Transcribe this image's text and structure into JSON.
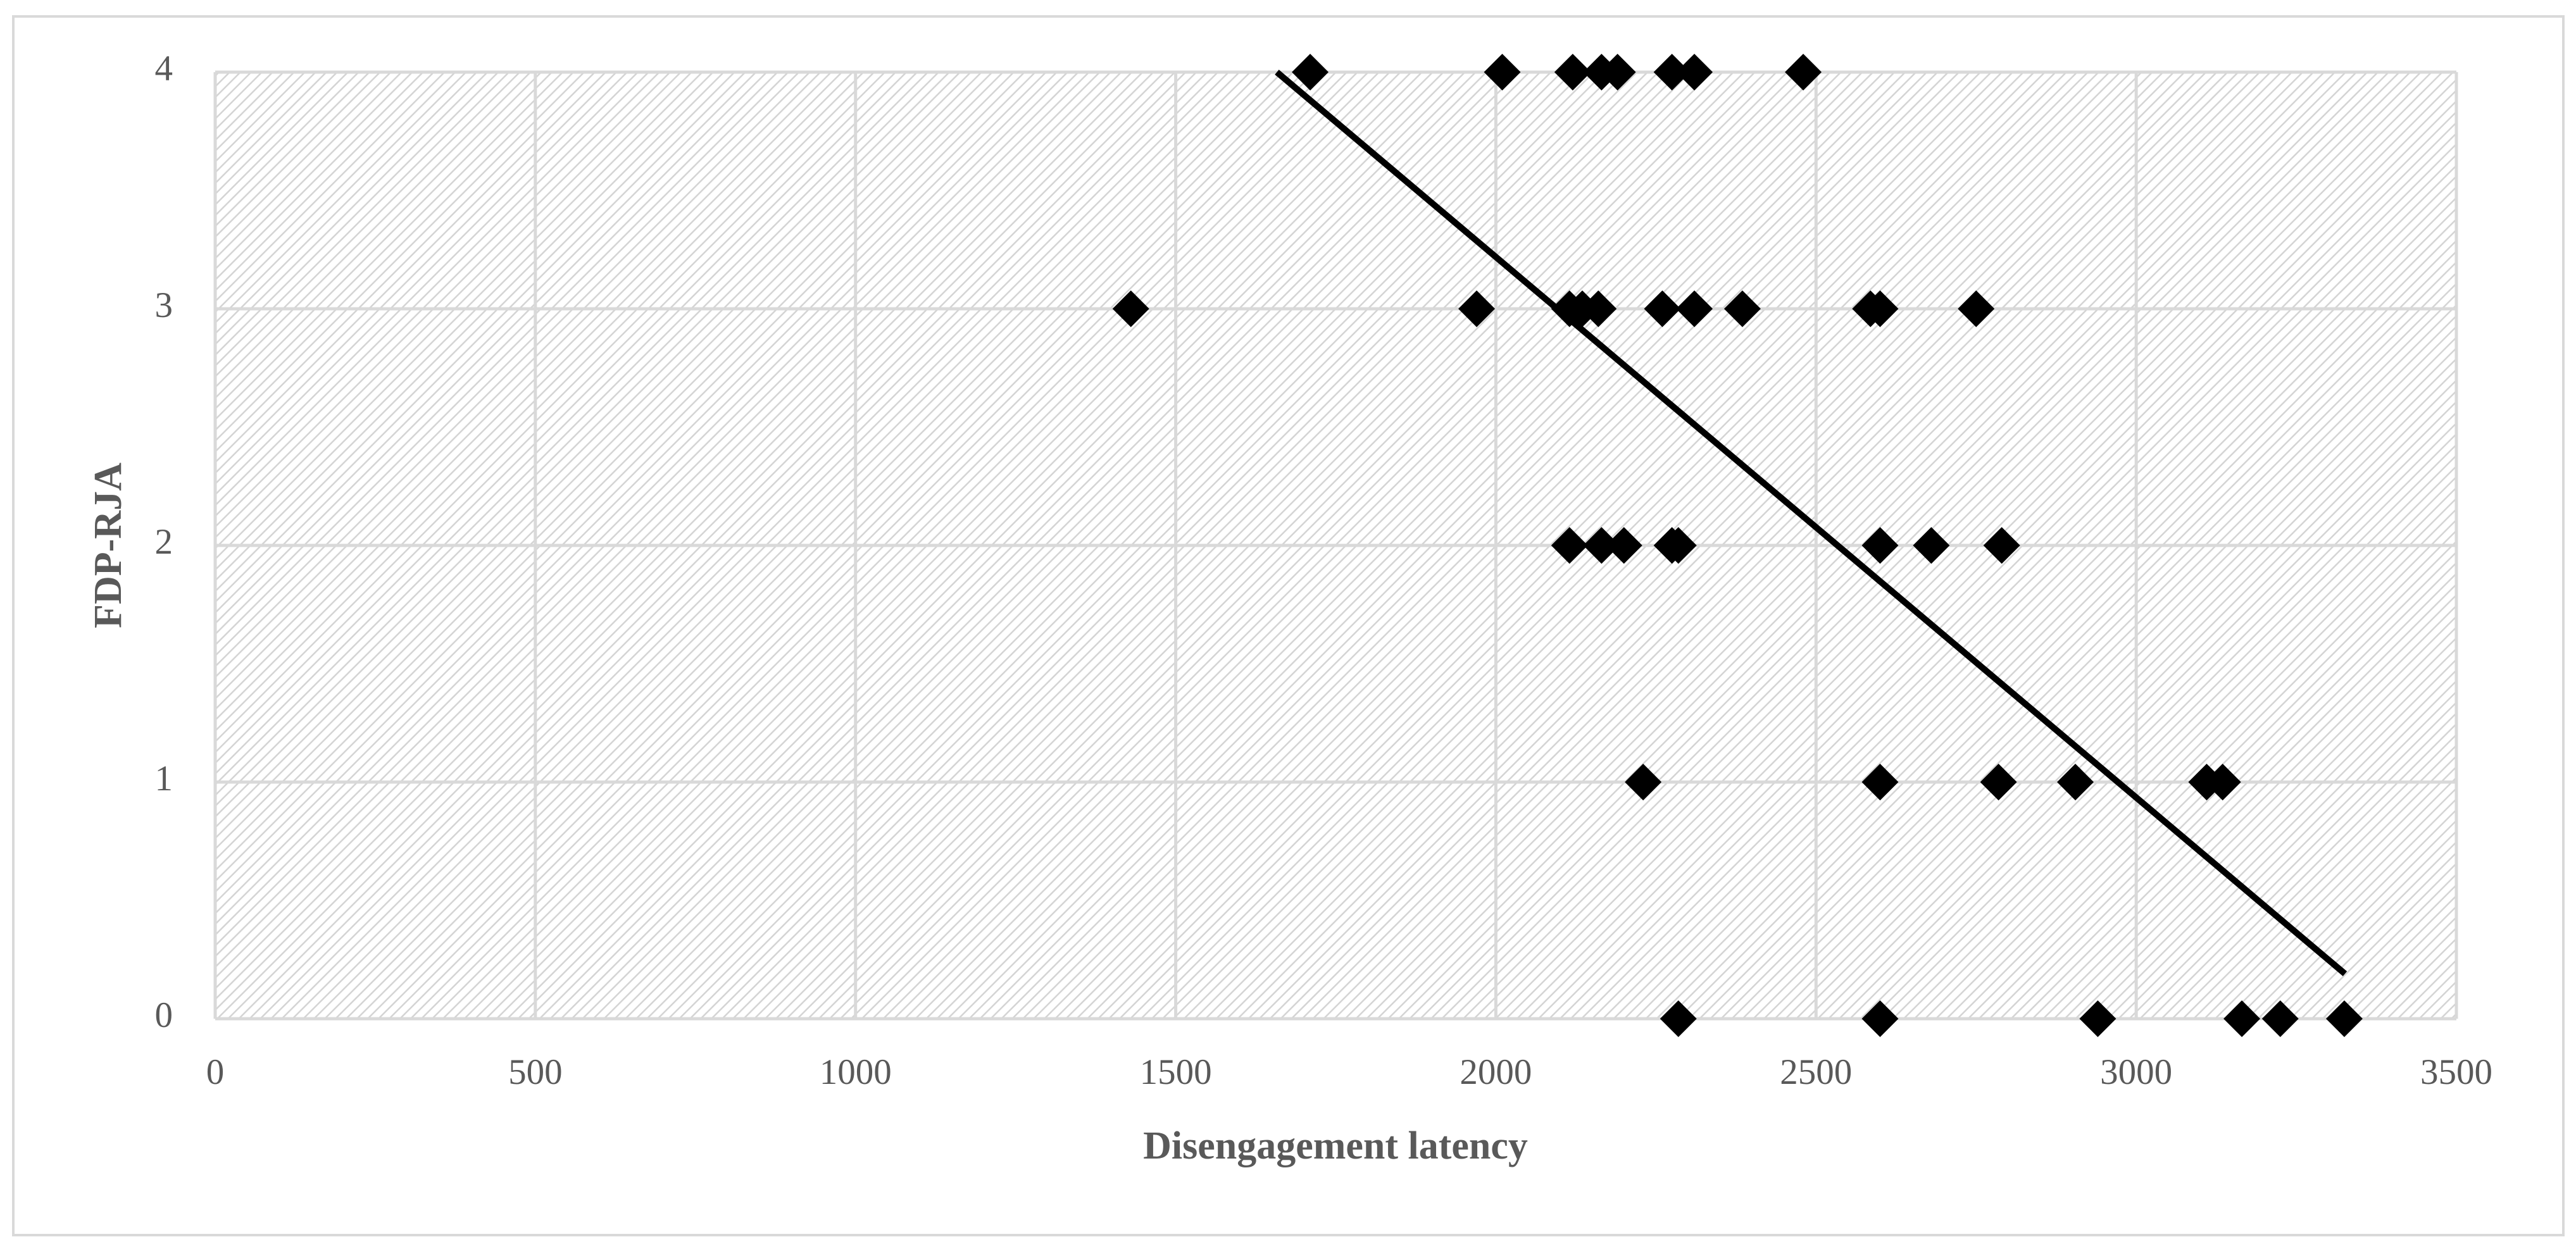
{
  "chart_data": {
    "type": "scatter",
    "x_label": "Disengagement latency",
    "y_label": "FDP-RJA",
    "x": [
      1710,
      2010,
      2120,
      2165,
      2190,
      2275,
      2310,
      2480,
      1430,
      1970,
      2115,
      2135,
      2160,
      2260,
      2310,
      2385,
      2585,
      2600,
      2750,
      2115,
      2165,
      2200,
      2275,
      2285,
      2600,
      2680,
      2790,
      2230,
      2600,
      2785,
      2905,
      3110,
      3135,
      2285,
      2600,
      2940,
      3165,
      3225,
      3325
    ],
    "values": [
      4,
      4,
      4,
      4,
      4,
      4,
      4,
      4,
      3,
      3,
      3,
      3,
      3,
      3,
      3,
      3,
      3,
      3,
      3,
      2,
      2,
      2,
      2,
      2,
      2,
      2,
      2,
      1,
      1,
      1,
      1,
      1,
      1,
      0,
      0,
      0,
      0,
      0,
      0
    ],
    "color": "#000000",
    "marker": "diamond",
    "trendline": {
      "x": [
        1658,
        3326
      ],
      "values": [
        4,
        0.19
      ],
      "color": "#000000"
    },
    "xlim": [
      0,
      3500
    ],
    "xticks": [
      0,
      500,
      1000,
      1500,
      2000,
      2500,
      3000,
      3500
    ],
    "ylim": [
      0,
      4
    ],
    "yticks": [
      0,
      1,
      2,
      3,
      4
    ],
    "grid": true
  }
}
